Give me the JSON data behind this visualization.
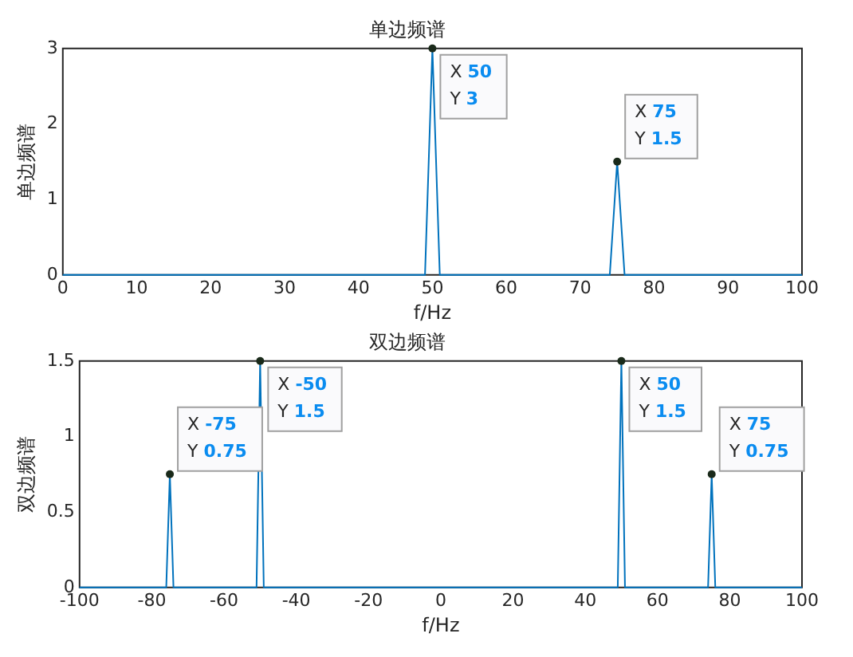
{
  "chart_data": [
    {
      "type": "line",
      "title": "单边频谱",
      "xlabel": "f/Hz",
      "ylabel": "单边频谱",
      "xlim": [
        0,
        100
      ],
      "xticks": [
        0,
        10,
        20,
        30,
        40,
        50,
        60,
        70,
        80,
        90,
        100
      ],
      "ylim": [
        0,
        3
      ],
      "yticks": [
        0,
        1,
        2,
        3
      ],
      "grid": false,
      "legend": false,
      "marker": "none",
      "series": [
        {
          "color": "#0072bd",
          "x": [
            0,
            49,
            50,
            51,
            74,
            75,
            76,
            100
          ],
          "values": [
            0,
            0,
            3,
            0,
            0,
            1.5,
            0,
            0
          ]
        }
      ],
      "annotations": [
        {
          "text": "X 50\nY 3",
          "x": 50,
          "y": 3
        },
        {
          "text": "X 75\nY 1.5",
          "x": 75,
          "y": 1.5
        }
      ]
    },
    {
      "type": "line",
      "title": "双边频谱",
      "xlabel": "f/Hz",
      "ylabel": "双边频谱",
      "xlim": [
        -100,
        100
      ],
      "xticks": [
        -100,
        -80,
        -60,
        -40,
        -20,
        0,
        20,
        40,
        60,
        80,
        100
      ],
      "ylim": [
        0,
        1.5
      ],
      "yticks": [
        0,
        0.5,
        1,
        1.5
      ],
      "grid": false,
      "legend": false,
      "marker": "none",
      "series": [
        {
          "color": "#0072bd",
          "x": [
            -100,
            -76,
            -75,
            -74,
            -51,
            -50,
            -49,
            49,
            50,
            51,
            74,
            75,
            76,
            100
          ],
          "values": [
            0,
            0,
            0.75,
            0,
            0,
            1.5,
            0,
            0,
            1.5,
            0,
            0,
            0.75,
            0,
            0
          ]
        }
      ],
      "annotations": [
        {
          "text": "X -75\nY 0.75",
          "x": -75,
          "y": 0.75
        },
        {
          "text": "X -50\nY 1.5",
          "x": -50,
          "y": 1.5
        },
        {
          "text": "X 50\nY 1.5",
          "x": 50,
          "y": 1.5
        },
        {
          "text": "X 75\nY 0.75",
          "x": 75,
          "y": 0.75
        }
      ]
    }
  ]
}
